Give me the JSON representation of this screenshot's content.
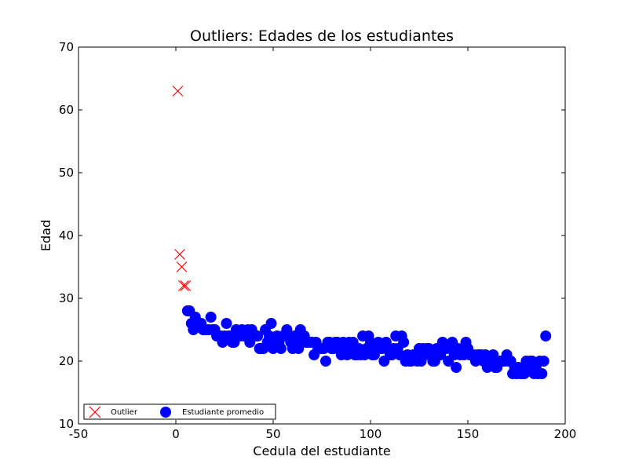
{
  "chart_data": {
    "type": "scatter",
    "title": "Outliers: Edades de los estudiantes",
    "xlabel": "Cedula del estudiante",
    "ylabel": "Edad",
    "xlim": [
      -50,
      200
    ],
    "ylim": [
      10,
      70
    ],
    "xticks": [
      -50,
      0,
      50,
      100,
      150,
      200
    ],
    "yticks": [
      10,
      20,
      30,
      40,
      50,
      60,
      70
    ],
    "grid": false,
    "legend_position": "lower-left",
    "series": [
      {
        "name": "Outlier",
        "marker": "x",
        "color": "#ff0000",
        "points": [
          [
            1,
            63
          ],
          [
            2,
            37
          ],
          [
            3,
            35
          ],
          [
            4,
            32
          ],
          [
            5,
            32
          ]
        ]
      },
      {
        "name": "Estudiante promedio",
        "marker": "circle",
        "color": "#0000ff",
        "points": [
          [
            6,
            28
          ],
          [
            7,
            28
          ],
          [
            8,
            26
          ],
          [
            9,
            25
          ],
          [
            10,
            27
          ],
          [
            11,
            26
          ],
          [
            12,
            26
          ],
          [
            13,
            26
          ],
          [
            14,
            25
          ],
          [
            15,
            25
          ],
          [
            16,
            25
          ],
          [
            17,
            25
          ],
          [
            18,
            27
          ],
          [
            19,
            25
          ],
          [
            20,
            25
          ],
          [
            21,
            24
          ],
          [
            22,
            24
          ],
          [
            23,
            24
          ],
          [
            24,
            23
          ],
          [
            25,
            24
          ],
          [
            26,
            26
          ],
          [
            27,
            24
          ],
          [
            28,
            24
          ],
          [
            29,
            23
          ],
          [
            30,
            23
          ],
          [
            31,
            25
          ],
          [
            32,
            24
          ],
          [
            33,
            24
          ],
          [
            34,
            25
          ],
          [
            35,
            24
          ],
          [
            36,
            24
          ],
          [
            37,
            25
          ],
          [
            38,
            23
          ],
          [
            39,
            25
          ],
          [
            40,
            24
          ],
          [
            41,
            24
          ],
          [
            42,
            24
          ],
          [
            43,
            22
          ],
          [
            44,
            22
          ],
          [
            45,
            22
          ],
          [
            46,
            25
          ],
          [
            47,
            23
          ],
          [
            48,
            24
          ],
          [
            49,
            26
          ],
          [
            50,
            22
          ],
          [
            51,
            23
          ],
          [
            52,
            24
          ],
          [
            53,
            23
          ],
          [
            54,
            22
          ],
          [
            55,
            24
          ],
          [
            56,
            24
          ],
          [
            57,
            25
          ],
          [
            58,
            24
          ],
          [
            59,
            23
          ],
          [
            60,
            22
          ],
          [
            61,
            24
          ],
          [
            62,
            23
          ],
          [
            63,
            22
          ],
          [
            64,
            25
          ],
          [
            65,
            23
          ],
          [
            66,
            24
          ],
          [
            67,
            23
          ],
          [
            68,
            23
          ],
          [
            69,
            23
          ],
          [
            70,
            23
          ],
          [
            71,
            21
          ],
          [
            72,
            23
          ],
          [
            73,
            22
          ],
          [
            74,
            22
          ],
          [
            75,
            22
          ],
          [
            76,
            22
          ],
          [
            77,
            20
          ],
          [
            78,
            23
          ],
          [
            79,
            23
          ],
          [
            80,
            22
          ],
          [
            81,
            22
          ],
          [
            82,
            23
          ],
          [
            83,
            23
          ],
          [
            84,
            22
          ],
          [
            85,
            21
          ],
          [
            86,
            23
          ],
          [
            87,
            22
          ],
          [
            88,
            21
          ],
          [
            89,
            23
          ],
          [
            90,
            22
          ],
          [
            91,
            23
          ],
          [
            92,
            21
          ],
          [
            93,
            21
          ],
          [
            94,
            22
          ],
          [
            95,
            21
          ],
          [
            96,
            24
          ],
          [
            97,
            21
          ],
          [
            98,
            22
          ],
          [
            99,
            24
          ],
          [
            100,
            23
          ],
          [
            101,
            21
          ],
          [
            102,
            21
          ],
          [
            103,
            22
          ],
          [
            104,
            23
          ],
          [
            105,
            22
          ],
          [
            106,
            22
          ],
          [
            107,
            20
          ],
          [
            108,
            23
          ],
          [
            109,
            22
          ],
          [
            110,
            21
          ],
          [
            111,
            21
          ],
          [
            112,
            22
          ],
          [
            113,
            24
          ],
          [
            114,
            22
          ],
          [
            115,
            21
          ],
          [
            116,
            24
          ],
          [
            117,
            23
          ],
          [
            118,
            20
          ],
          [
            119,
            21
          ],
          [
            120,
            20
          ],
          [
            121,
            20
          ],
          [
            122,
            21
          ],
          [
            123,
            21
          ],
          [
            124,
            20
          ],
          [
            125,
            22
          ],
          [
            126,
            20
          ],
          [
            127,
            22
          ],
          [
            128,
            21
          ],
          [
            129,
            22
          ],
          [
            130,
            22
          ],
          [
            131,
            21
          ],
          [
            132,
            20
          ],
          [
            133,
            20
          ],
          [
            134,
            22
          ],
          [
            135,
            21
          ],
          [
            136,
            21
          ],
          [
            137,
            23
          ],
          [
            138,
            22
          ],
          [
            139,
            22
          ],
          [
            140,
            20
          ],
          [
            141,
            22
          ],
          [
            142,
            23
          ],
          [
            143,
            21
          ],
          [
            144,
            19
          ],
          [
            145,
            22
          ],
          [
            146,
            21
          ],
          [
            147,
            22
          ],
          [
            148,
            21
          ],
          [
            149,
            23
          ],
          [
            150,
            22
          ],
          [
            151,
            21
          ],
          [
            152,
            21
          ],
          [
            153,
            21
          ],
          [
            154,
            20
          ],
          [
            155,
            21
          ],
          [
            156,
            21
          ],
          [
            157,
            21
          ],
          [
            158,
            20
          ],
          [
            159,
            21
          ],
          [
            160,
            19
          ],
          [
            161,
            20
          ],
          [
            162,
            20
          ],
          [
            163,
            21
          ],
          [
            164,
            19
          ],
          [
            165,
            19
          ],
          [
            166,
            20
          ],
          [
            167,
            20
          ],
          [
            168,
            20
          ],
          [
            169,
            20
          ],
          [
            170,
            21
          ],
          [
            171,
            20
          ],
          [
            172,
            20
          ],
          [
            173,
            18
          ],
          [
            174,
            19
          ],
          [
            175,
            18
          ],
          [
            176,
            19
          ],
          [
            177,
            18
          ],
          [
            178,
            18
          ],
          [
            179,
            18
          ],
          [
            180,
            20
          ],
          [
            181,
            19
          ],
          [
            182,
            20
          ],
          [
            183,
            20
          ],
          [
            184,
            18
          ],
          [
            185,
            19
          ],
          [
            186,
            18
          ],
          [
            187,
            20
          ],
          [
            188,
            18
          ],
          [
            189,
            20
          ],
          [
            190,
            24
          ]
        ]
      }
    ]
  }
}
